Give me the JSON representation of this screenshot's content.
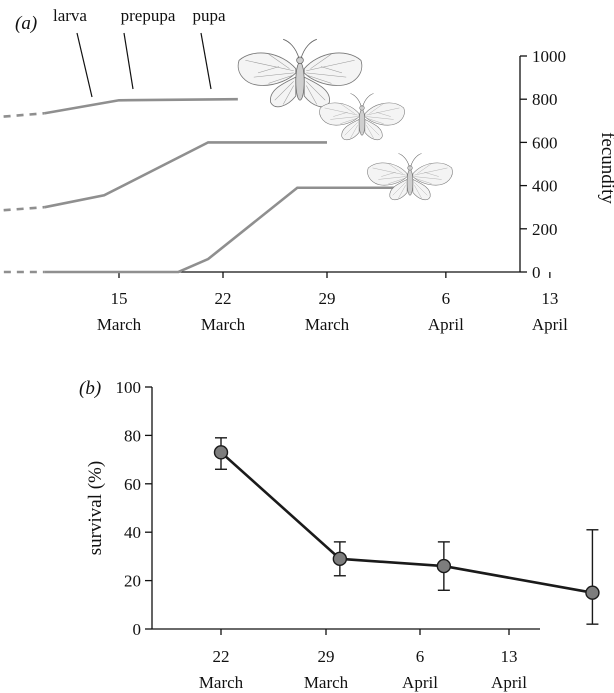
{
  "chart_data": [
    {
      "panel_label": "(a)",
      "type": "line",
      "ylabel": "fecundity",
      "ylim": [
        0,
        1000
      ],
      "y_ticks": [
        0,
        200,
        400,
        600,
        800,
        1000
      ],
      "x_ticks": [
        {
          "day": "15",
          "month": "March"
        },
        {
          "day": "22",
          "month": "March"
        },
        {
          "day": "29",
          "month": "March"
        },
        {
          "day": "6",
          "month": "April"
        },
        {
          "day": "13",
          "month": "April"
        }
      ],
      "stage_labels": [
        "larva",
        "prepupa",
        "pupa"
      ],
      "series": [
        {
          "values": [
            {
              "x": "2 March",
              "y": 690
            },
            {
              "x": "10 March",
              "y": 735
            },
            {
              "x": "15 March",
              "y": 795
            },
            {
              "x": "23 March",
              "y": 800
            }
          ],
          "dashed_until": "10 March"
        },
        {
          "values": [
            {
              "x": "2 March",
              "y": 260
            },
            {
              "x": "10 March",
              "y": 300
            },
            {
              "x": "14 March",
              "y": 355
            },
            {
              "x": "21 March",
              "y": 600
            },
            {
              "x": "29 March",
              "y": 600
            }
          ],
          "dashed_until": "10 March"
        },
        {
          "values": [
            {
              "x": "2 March",
              "y": 0
            },
            {
              "x": "10 March",
              "y": 0
            },
            {
              "x": "19 March",
              "y": 0
            },
            {
              "x": "21 March",
              "y": 60
            },
            {
              "x": "27 March",
              "y": 390
            },
            {
              "x": "4 April",
              "y": 390
            }
          ],
          "dashed_until": "10 March"
        }
      ],
      "illustration_icon": "moth-icon"
    },
    {
      "panel_label": "(b)",
      "type": "line",
      "ylabel": "survival (%)",
      "ylim": [
        0,
        100
      ],
      "y_ticks": [
        0,
        20,
        40,
        60,
        80,
        100
      ],
      "categories": [
        {
          "day": "22",
          "month": "March"
        },
        {
          "day": "29",
          "month": "March"
        },
        {
          "day": "6",
          "month": "April"
        },
        {
          "day": "13",
          "month": "April"
        }
      ],
      "x": [
        "21 March",
        "29 March",
        "5 April",
        "15 April"
      ],
      "values": [
        73,
        29,
        26,
        15
      ],
      "error_low": [
        66,
        22,
        16,
        2
      ],
      "error_high": [
        79,
        36,
        36,
        41
      ]
    }
  ]
}
